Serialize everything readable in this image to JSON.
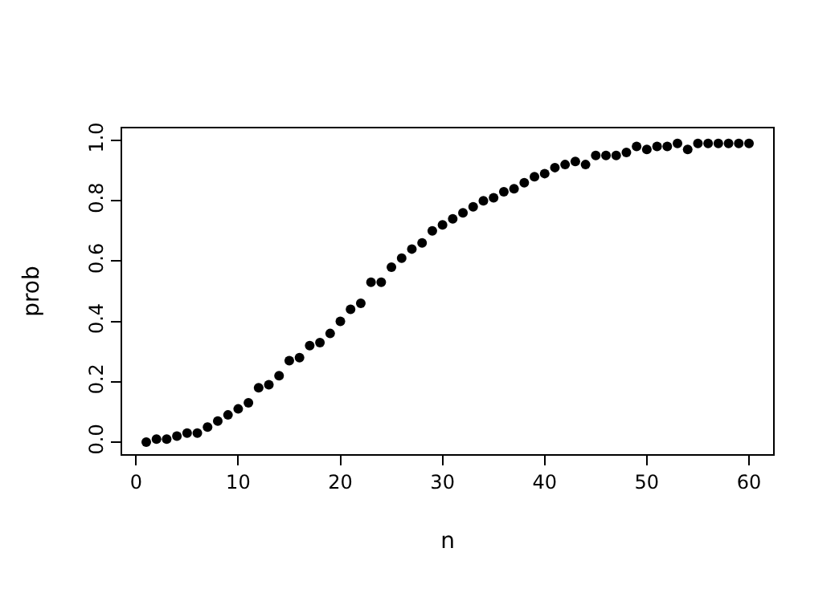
{
  "chart_data": {
    "type": "scatter",
    "xlabel": "n",
    "ylabel": "prob",
    "x": [
      1,
      2,
      3,
      4,
      5,
      6,
      7,
      8,
      9,
      10,
      11,
      12,
      13,
      14,
      15,
      16,
      17,
      18,
      19,
      20,
      21,
      22,
      23,
      24,
      25,
      26,
      27,
      28,
      29,
      30,
      31,
      32,
      33,
      34,
      35,
      36,
      37,
      38,
      39,
      40,
      41,
      42,
      43,
      44,
      45,
      46,
      47,
      48,
      49,
      50,
      51,
      52,
      53,
      54,
      55,
      56,
      57,
      58,
      59,
      60
    ],
    "series": [
      {
        "color": "#000000",
        "values": [
          0.0,
          0.01,
          0.01,
          0.02,
          0.03,
          0.03,
          0.05,
          0.07,
          0.09,
          0.11,
          0.13,
          0.18,
          0.19,
          0.22,
          0.27,
          0.28,
          0.32,
          0.33,
          0.36,
          0.4,
          0.44,
          0.46,
          0.53,
          0.53,
          0.58,
          0.61,
          0.64,
          0.66,
          0.7,
          0.72,
          0.74,
          0.76,
          0.78,
          0.8,
          0.81,
          0.83,
          0.84,
          0.86,
          0.88,
          0.89,
          0.91,
          0.92,
          0.93,
          0.92,
          0.95,
          0.95,
          0.95,
          0.96,
          0.98,
          0.97,
          0.98,
          0.98,
          0.99,
          0.97,
          0.99,
          0.99,
          0.99,
          0.99,
          0.99,
          0.99
        ]
      }
    ],
    "xlim": [
      -1.36,
      62.36
    ],
    "ylim": [
      -0.04,
      1.04
    ],
    "xticks": [
      0,
      10,
      20,
      30,
      40,
      50,
      60
    ],
    "yticks": [
      {
        "value": 0,
        "label": "0.0"
      },
      {
        "value": 0.2,
        "label": "0.2"
      },
      {
        "value": 0.4,
        "label": "0.4"
      },
      {
        "value": 0.6,
        "label": "0.6"
      },
      {
        "value": 0.8,
        "label": "0.8"
      },
      {
        "value": 1,
        "label": "1.0"
      }
    ],
    "marker": "circle"
  }
}
